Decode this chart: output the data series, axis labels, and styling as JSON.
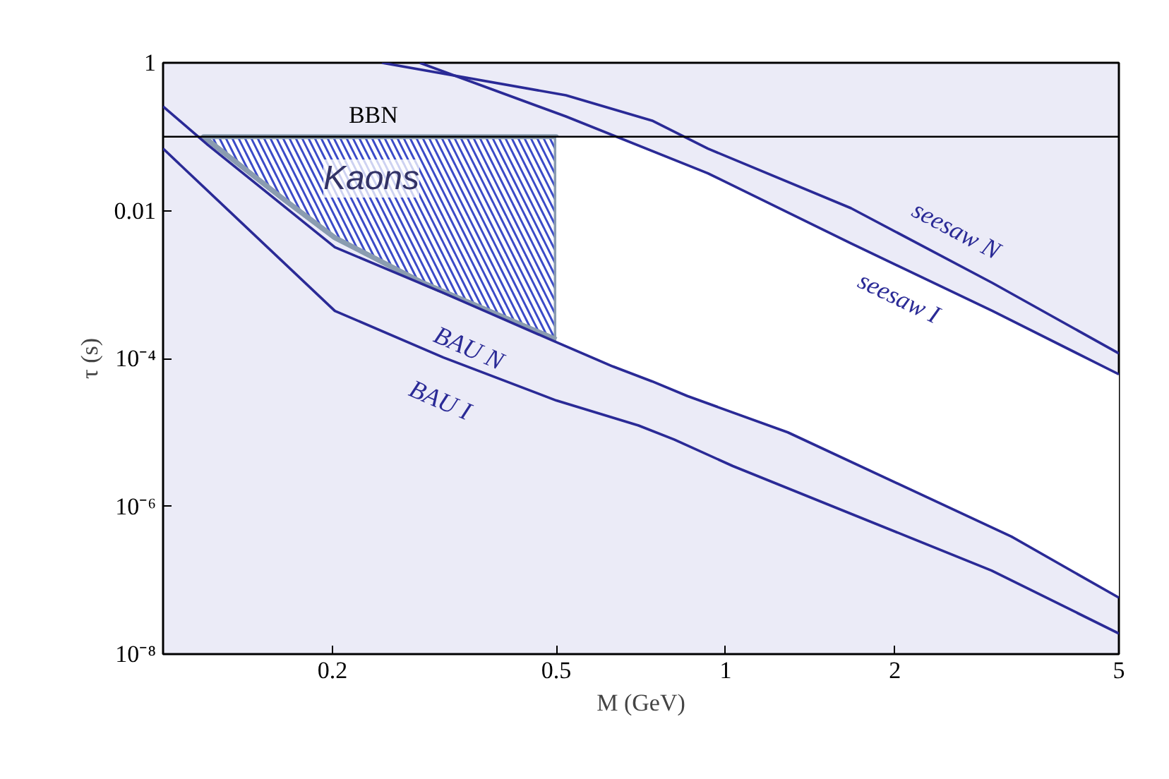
{
  "chart_data": {
    "type": "line",
    "xlabel": "M (GeV)",
    "ylabel": "τ (s)",
    "log": "xy",
    "xlim": [
      0.1,
      5
    ],
    "ylim": [
      1e-08,
      1
    ],
    "xticks": [
      0.2,
      0.5,
      1,
      2,
      5
    ],
    "yticks": [
      1,
      0.01,
      {
        "value": 0.0001,
        "label": "10⁻⁴"
      },
      {
        "value": 1e-06,
        "label": "10⁻⁶"
      },
      {
        "value": 1e-08,
        "label": "10⁻⁸"
      }
    ],
    "grid": false,
    "marker": "none",
    "line_style": "solid",
    "ref_lines": [
      {
        "axis": "y",
        "value": 0.1,
        "label": "BBN",
        "color": "#000000"
      }
    ],
    "series": [
      {
        "name": "Kaons",
        "color": "#8a9cb0",
        "x": [
          0.118,
          0.163,
          0.202,
          0.29,
          0.5
        ],
        "values": [
          0.1,
          0.0147,
          0.0043,
          0.00105,
          0.00018
        ],
        "lower": [
          0.1,
          0.0147,
          0.0043,
          0.00105,
          0.00018
        ],
        "upper": [
          0.1,
          0.1,
          0.1,
          0.1,
          0.1
        ]
      },
      {
        "name": "seesaw N",
        "color": "#2a2a96",
        "x": [
          0.245,
          0.52,
          0.74,
          0.93,
          1.67,
          2.98,
          5
        ],
        "values": [
          1,
          0.364,
          0.165,
          0.069,
          0.0108,
          0.00105,
          0.000117
        ]
      },
      {
        "name": "seesaw I",
        "color": "#2a2a96",
        "x": [
          0.286,
          0.52,
          0.93,
          1.67,
          2.98,
          5
        ],
        "values": [
          1,
          0.188,
          0.032,
          0.0036,
          0.00044,
          6.1e-05
        ]
      },
      {
        "name": "BAU N",
        "color": "#2a2a96",
        "x": [
          0.1,
          0.12,
          0.202,
          0.315,
          0.5,
          0.63,
          0.74,
          0.855,
          1.29,
          3.22,
          5
        ],
        "values": [
          0.256,
          0.078,
          0.0032,
          0.00077,
          0.000166,
          7.8e-05,
          4.9e-05,
          3.1e-05,
          1e-05,
          3.9e-07,
          5.8e-08
        ],
        "lower": [
          null,
          null,
          null,
          null,
          0.000166,
          7.8e-05,
          4.9e-05,
          3.1e-05,
          1e-05,
          3.9e-07,
          5.8e-08
        ],
        "upper": [
          null,
          null,
          null,
          null,
          0.1,
          0.1,
          0.064,
          0.041,
          0.0094,
          0.000327,
          6.1e-05
        ]
      },
      {
        "name": "BAU I",
        "color": "#2a2a96",
        "x": [
          0.1,
          0.202,
          0.315,
          0.5,
          0.7,
          0.81,
          1.03,
          2.97,
          5
        ],
        "values": [
          0.069,
          0.00044,
          0.000103,
          2.7e-05,
          1.24e-05,
          8e-06,
          3.5e-06,
          1.35e-07,
          1.9e-08
        ]
      }
    ]
  }
}
